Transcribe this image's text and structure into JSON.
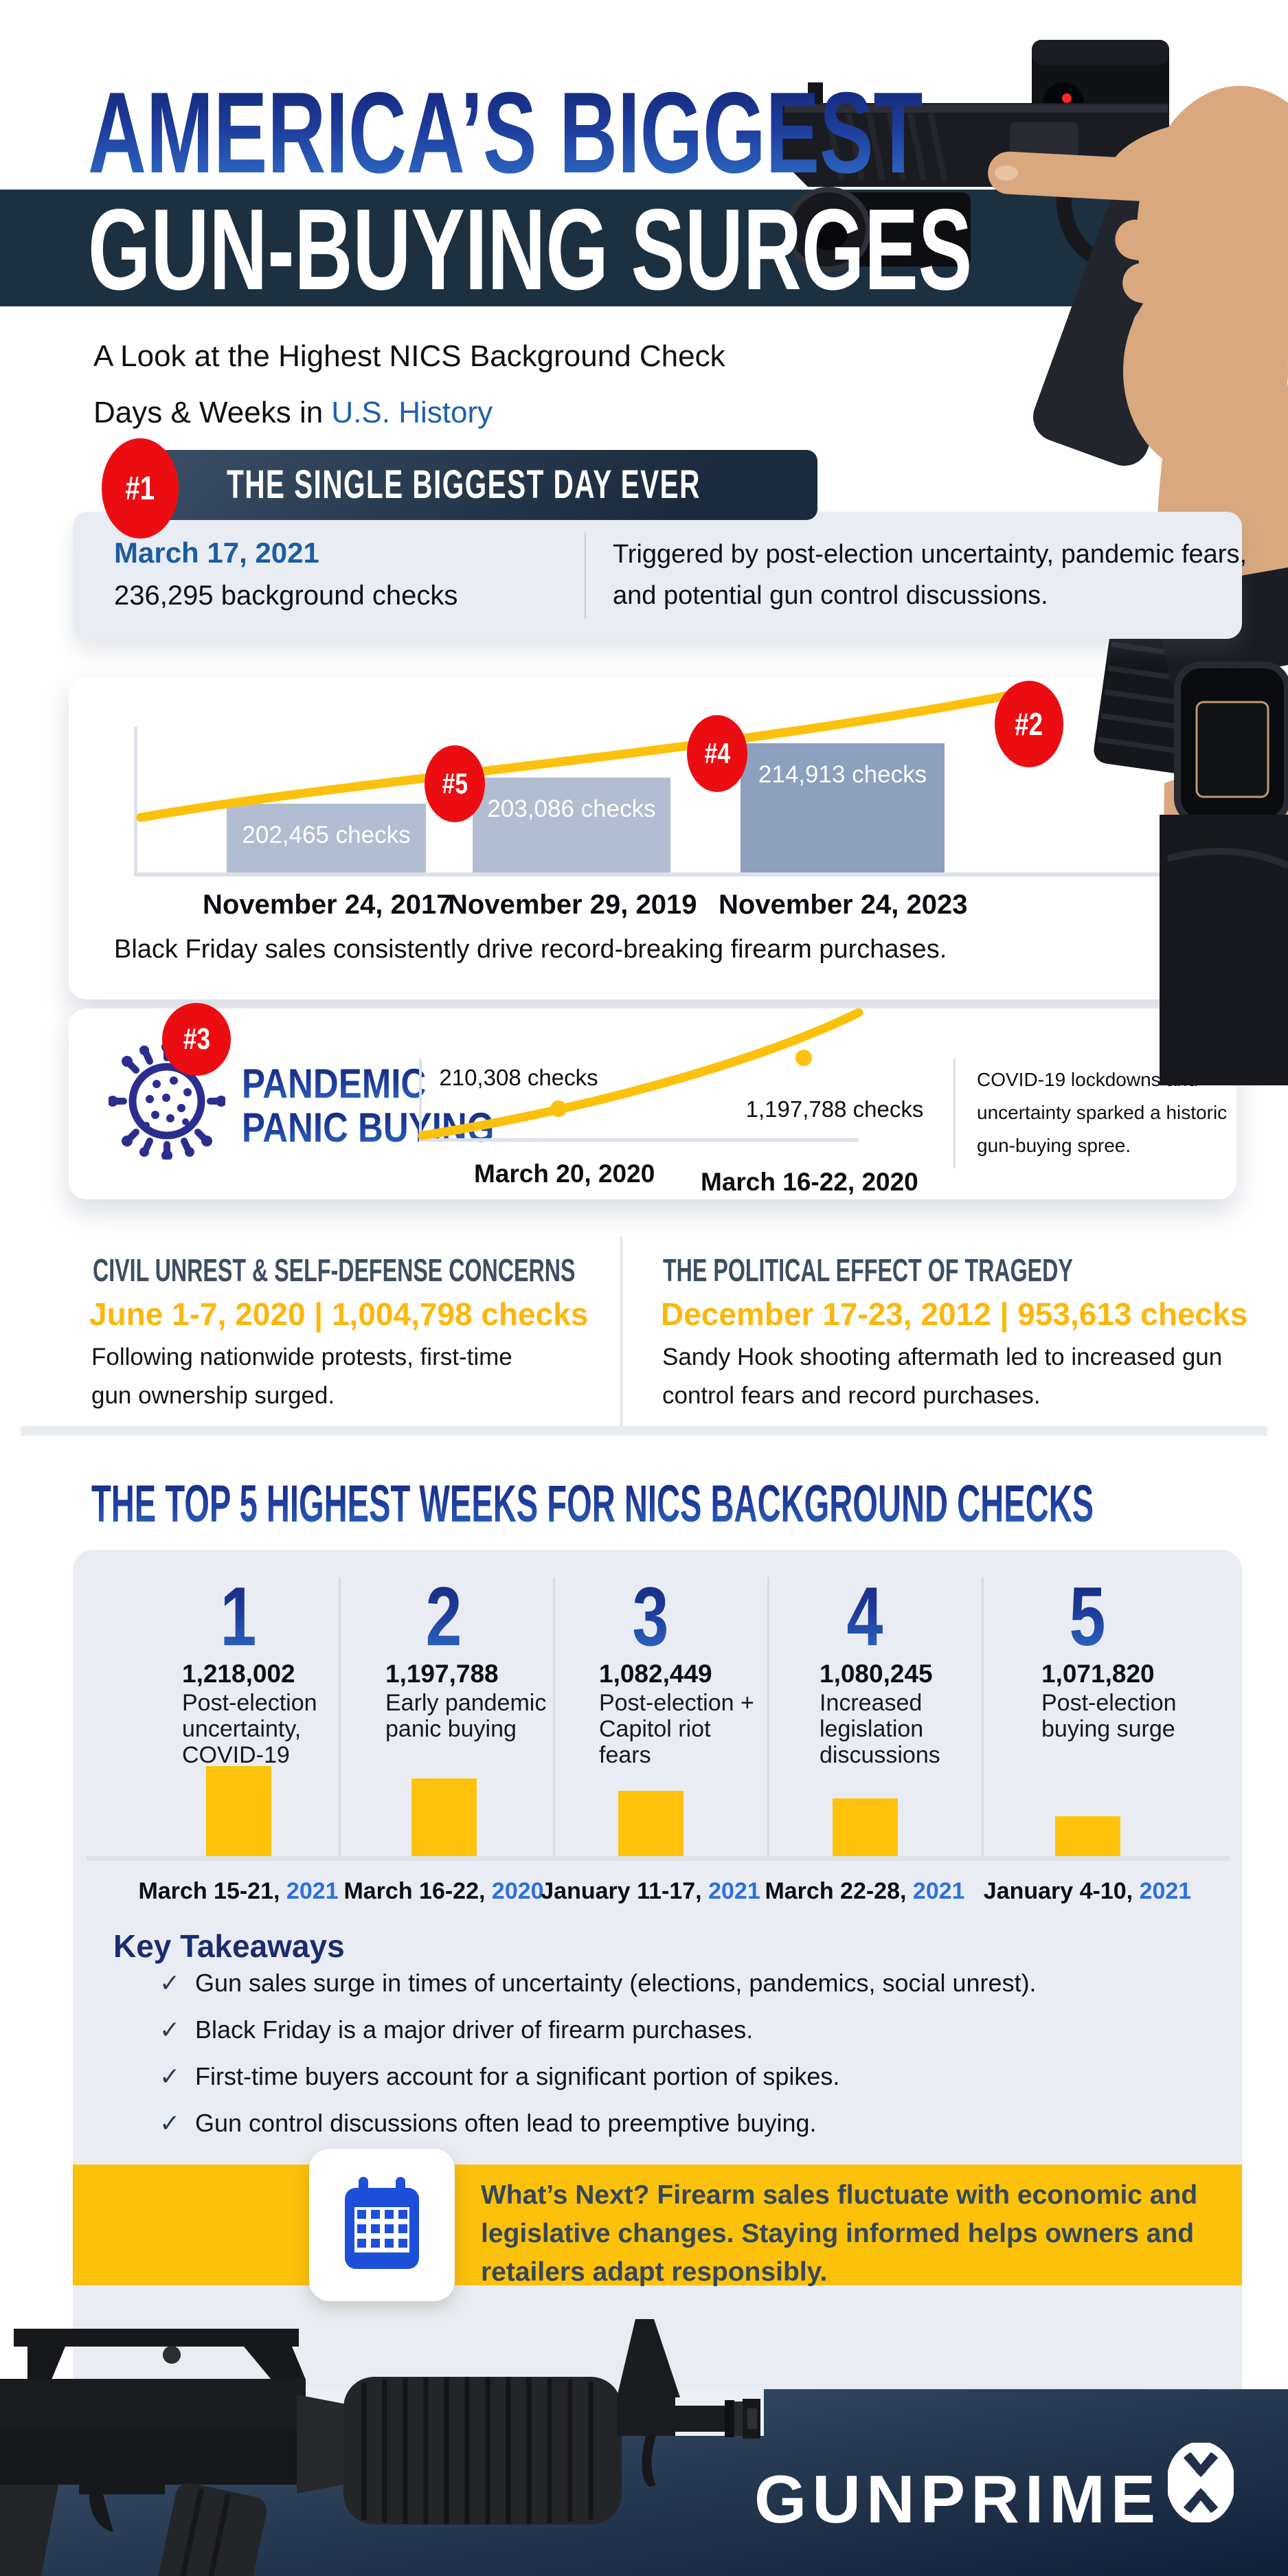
{
  "header": {
    "title_line1": "AMERICA’S BIGGEST",
    "title_line2": "GUN-BUYING SURGES",
    "subtitle_line1": "A Look at the Highest NICS Background Check",
    "subtitle_line2_prefix": "Days & Weeks in ",
    "subtitle_highlight": "U.S. History"
  },
  "single_day": {
    "badge": "#1",
    "banner": "THE SINGLE BIGGEST DAY EVER",
    "date": "March 17, 2021",
    "stat": "236,295 background checks",
    "desc": "Triggered by post-election uncertainty, pandemic fears, and potential gun control discussions."
  },
  "black_friday": {
    "bars": [
      {
        "badge": "#5",
        "label": "202,465  checks",
        "date": "November 24, 2017"
      },
      {
        "badge": "#4",
        "label": "203,086 checks",
        "date": "November 29, 2019"
      },
      {
        "badge": "#2",
        "label": "214,913 checks",
        "date": "November 24, 2023"
      }
    ],
    "caption": "Black Friday sales consistently drive record-breaking firearm purchases."
  },
  "pandemic": {
    "badge": "#3",
    "title_line1": "PANDEMIC",
    "title_line2": "PANIC BUYING",
    "point1_label": "210,308 checks",
    "point1_date": "March 20, 2020",
    "point2_label": "1,197,788 checks",
    "point2_date": "March 16-22, 2020",
    "desc": "COVID-19 lockdowns and uncertainty sparked a historic gun-buying spree."
  },
  "civil_unrest": {
    "heading": "CIVIL UNREST & SELF-DEFENSE CONCERNS",
    "stat": "June 1-7, 2020 | 1,004,798 checks",
    "desc": "Following nationwide protests, first-time gun ownership surged."
  },
  "tragedy": {
    "heading": "THE POLITICAL EFFECT OF TRAGEDY",
    "stat": "December 17-23, 2012 | 953,613 checks",
    "desc": "Sandy Hook shooting aftermath led to increased gun control fears and record purchases."
  },
  "top5": {
    "heading": "THE TOP 5 HIGHEST WEEKS FOR NICS BACKGROUND CHECKS",
    "items": [
      {
        "rank": "1",
        "value": "1,218,002",
        "desc": "Post-election uncertainty, COVID-19",
        "date": "March 15-21,",
        "year": "2021"
      },
      {
        "rank": "2",
        "value": "1,197,788",
        "desc": "Early pandemic panic buying",
        "date": "March 16-22,",
        "year": "2020"
      },
      {
        "rank": "3",
        "value": "1,082,449",
        "desc": "Post-election + Capitol riot fears",
        "date": "January 11-17,",
        "year": "2021"
      },
      {
        "rank": "4",
        "value": "1,080,245",
        "desc": "Increased legislation discussions",
        "date": "March 22-28,",
        "year": "2021"
      },
      {
        "rank": "5",
        "value": "1,071,820",
        "desc": "Post-election buying surge",
        "date": "January 4-10,",
        "year": "2021"
      }
    ]
  },
  "takeaways": {
    "title": "Key Takeaways",
    "check": "✓",
    "items": [
      "Gun sales surge in times of uncertainty (elections, pandemics, social unrest).",
      "Black Friday is a major driver of firearm purchases.",
      "First-time buyers account for a significant portion of spikes.",
      "Gun control discussions often lead to preemptive buying."
    ]
  },
  "whats_next": {
    "text": "What’s Next? Firearm sales fluctuate with economic and legislative changes. Staying informed helps owners and retailers adapt responsibly."
  },
  "footer": {
    "brand": "GUNPRIME"
  },
  "colors": {
    "yellow": "#fcc10a",
    "red": "#ec0d13",
    "navy_band": "#1d3040",
    "accent_blue": "#1d5c9e",
    "year_blue": "#2e6fe0"
  },
  "chart_data": [
    {
      "id": "black_friday_days",
      "type": "bar",
      "categories": [
        "November 24, 2017",
        "November 29, 2019",
        "November 24, 2023"
      ],
      "values": [
        202465,
        203086,
        214913
      ],
      "rank_badges": [
        "#5",
        "#4",
        "#2"
      ],
      "display_heights": [
        100,
        138,
        188
      ],
      "title": "Black Friday record days",
      "ylabel": "background checks",
      "annotations": "rising yellow trend line over bars"
    },
    {
      "id": "pandemic_surge",
      "type": "line",
      "x": [
        "March 20, 2020",
        "March 16-22, 2020"
      ],
      "values": [
        210308,
        1197788
      ],
      "title": "Pandemic panic buying",
      "note": "yellow rising curve with two marked points"
    },
    {
      "id": "top5_weeks",
      "type": "bar",
      "categories": [
        "March 15-21, 2021",
        "March 16-22, 2020",
        "January 11-17, 2021",
        "March 22-28, 2021",
        "January 4-10, 2021"
      ],
      "values": [
        1218002,
        1197788,
        1082449,
        1080245,
        1071820
      ],
      "display_heights": [
        135,
        117,
        99,
        88,
        62
      ],
      "title": "Top 5 highest weeks for NICS background checks"
    }
  ]
}
